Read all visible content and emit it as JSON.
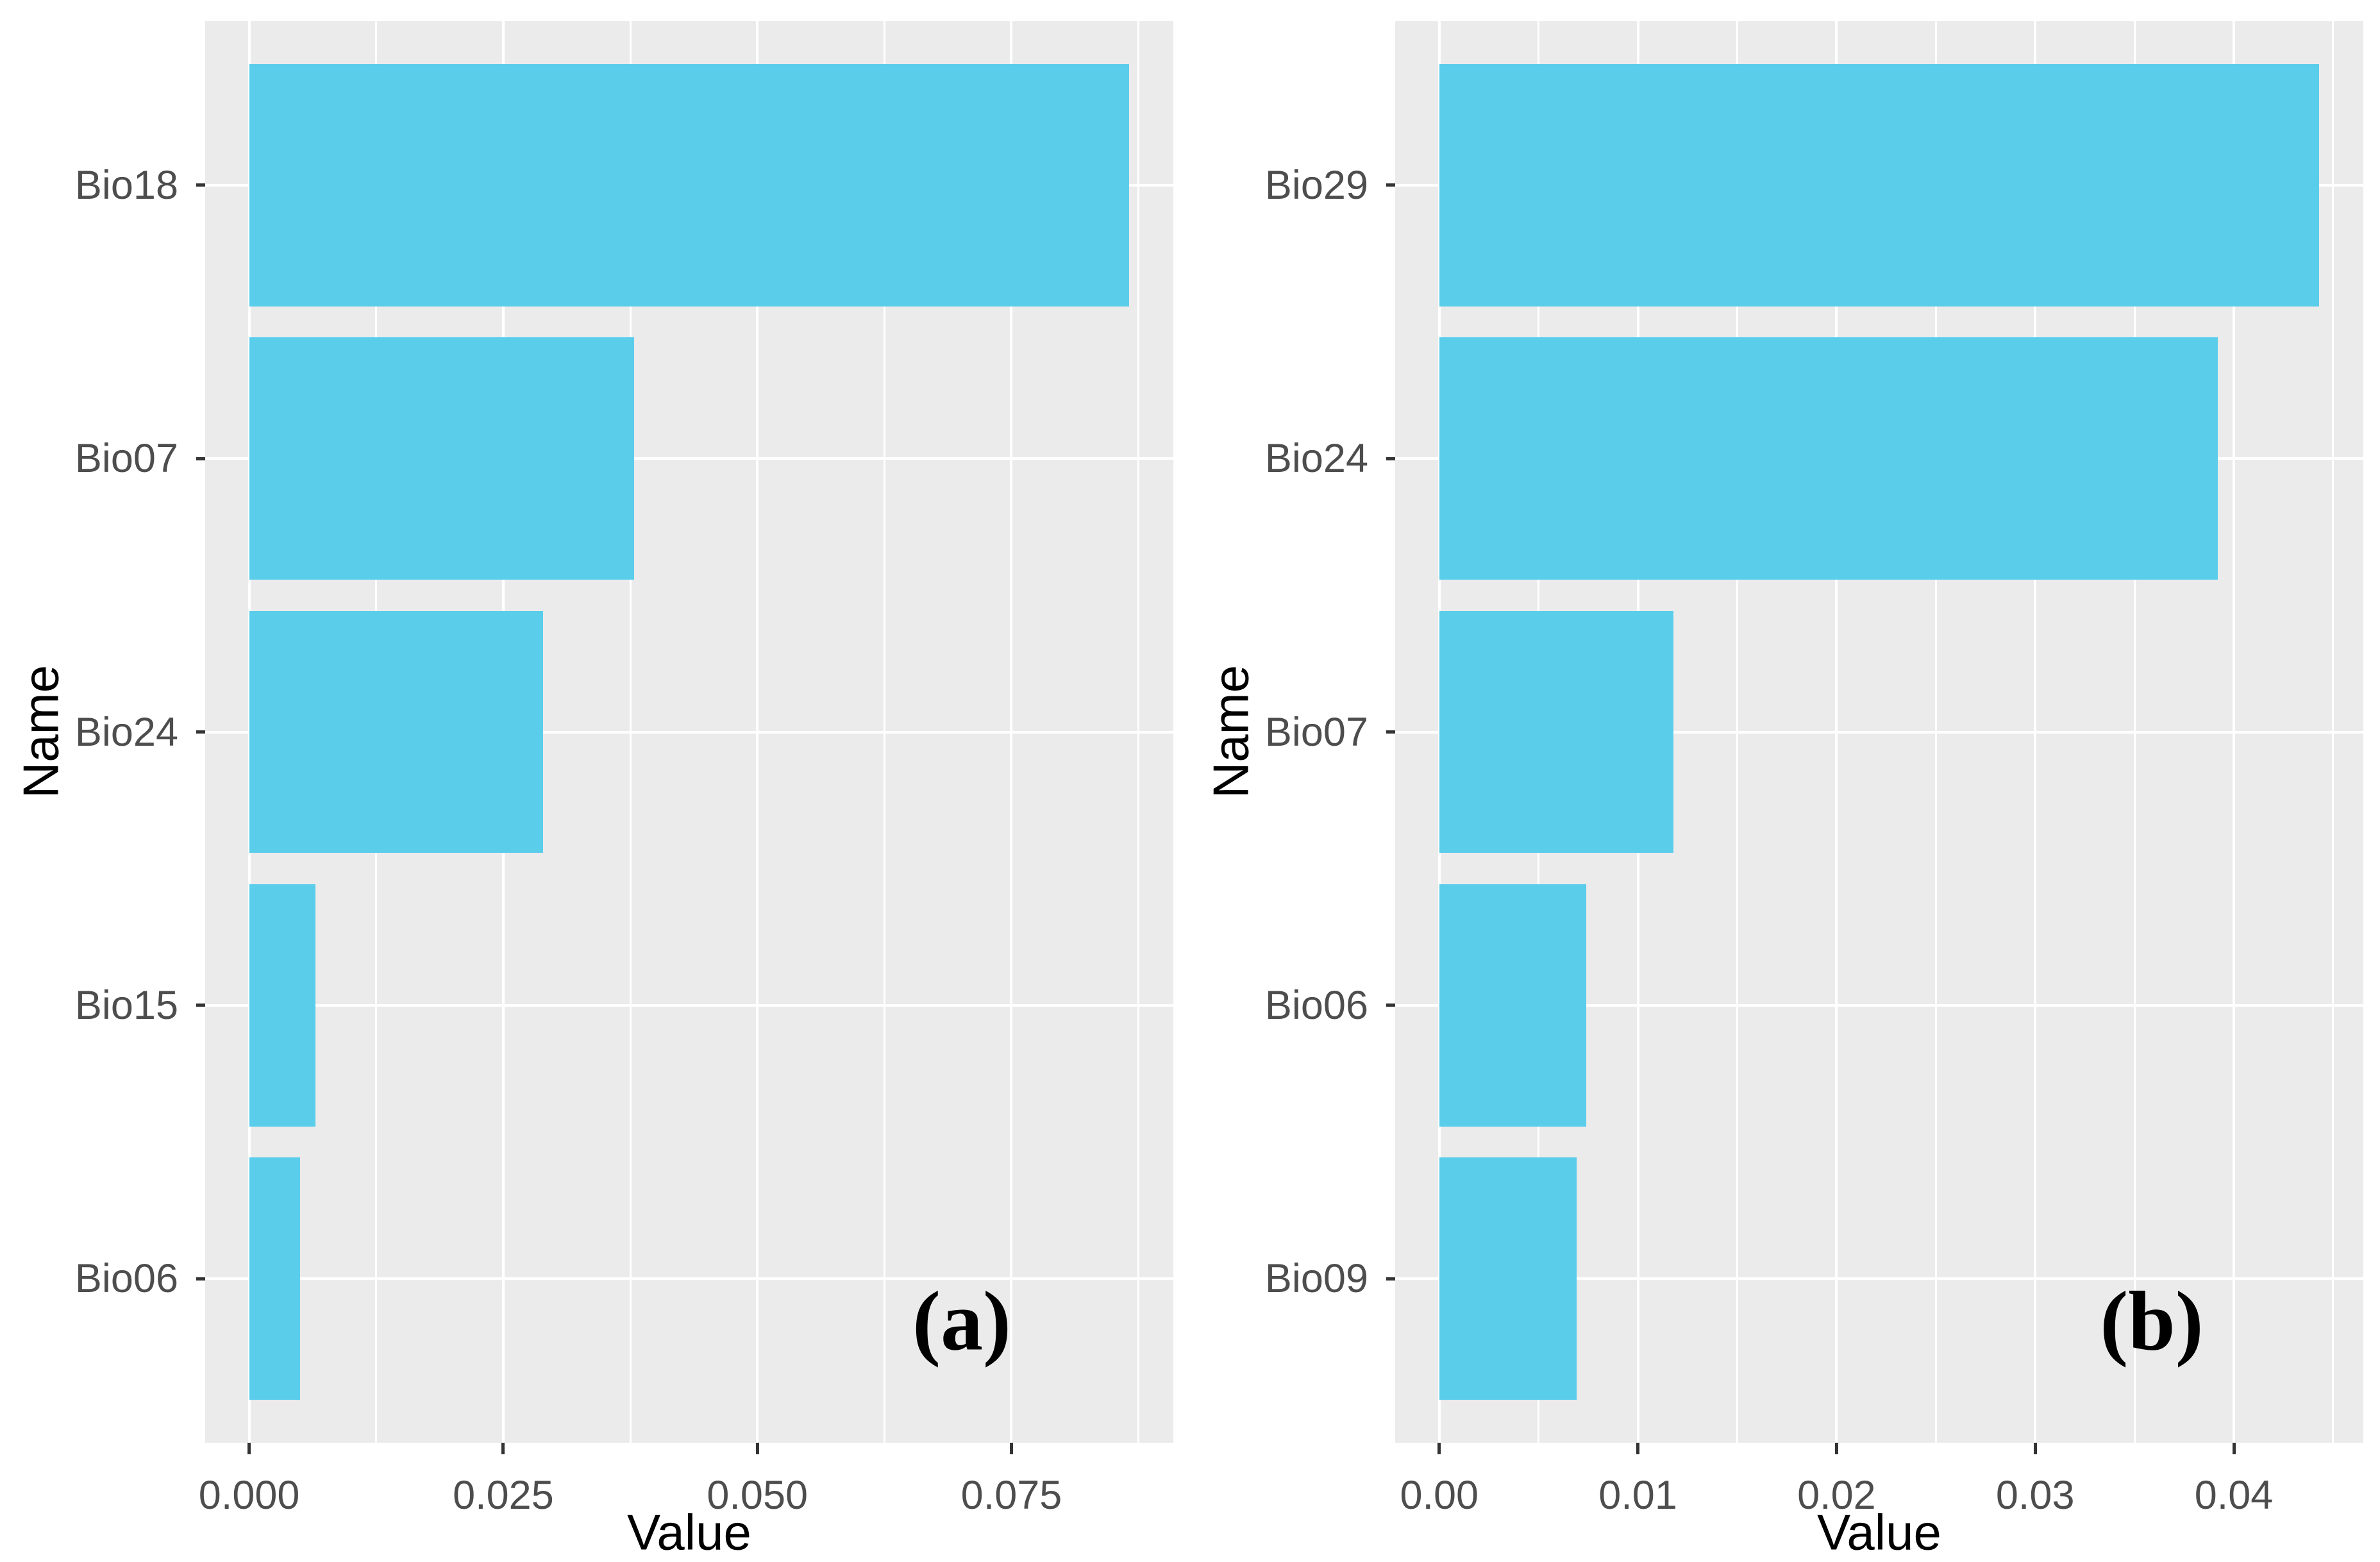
{
  "style": {
    "page_background": "#FFFFFF",
    "panel_background": "#EBEBEB",
    "grid_color": "#FFFFFF",
    "bar_color": "#5ACDEB",
    "axis_text_color": "#4D4D4D",
    "axis_title_color": "#000000",
    "tick_mark_color": "#333333"
  },
  "chart_data": [
    {
      "type": "bar",
      "orientation": "horizontal",
      "panel_label": "(a)",
      "xlabel": "Value",
      "ylabel": "Name",
      "categories": [
        "Bio18",
        "Bio07",
        "Bio24",
        "Bio15",
        "Bio06"
      ],
      "values": [
        0.0866,
        0.0379,
        0.0289,
        0.0065,
        0.005
      ],
      "x_ticks": [
        0,
        0.025,
        0.05,
        0.075
      ],
      "x_tick_labels": [
        "0.000",
        "0.025",
        "0.050",
        "0.075"
      ],
      "x_minor_ticks": [
        0.0125,
        0.0375,
        0.0625,
        0.0875
      ],
      "xlim": [
        -0.00433,
        0.09093
      ],
      "grid": true,
      "legend": "none",
      "bar_width_fraction": 0.886
    },
    {
      "type": "bar",
      "orientation": "horizontal",
      "panel_label": "(b)",
      "xlabel": "Value",
      "ylabel": "Name",
      "categories": [
        "Bio29",
        "Bio24",
        "Bio07",
        "Bio06",
        "Bio09"
      ],
      "values": [
        0.0443,
        0.0392,
        0.0118,
        0.0074,
        0.0069
      ],
      "x_ticks": [
        0,
        0.01,
        0.02,
        0.03,
        0.04
      ],
      "x_tick_labels": [
        "0.00",
        "0.01",
        "0.02",
        "0.03",
        "0.04"
      ],
      "x_minor_ticks": [
        0.005,
        0.015,
        0.025,
        0.035,
        0.045
      ],
      "xlim": [
        -0.00222,
        0.04652
      ],
      "grid": true,
      "legend": "none",
      "bar_width_fraction": 0.886
    }
  ]
}
